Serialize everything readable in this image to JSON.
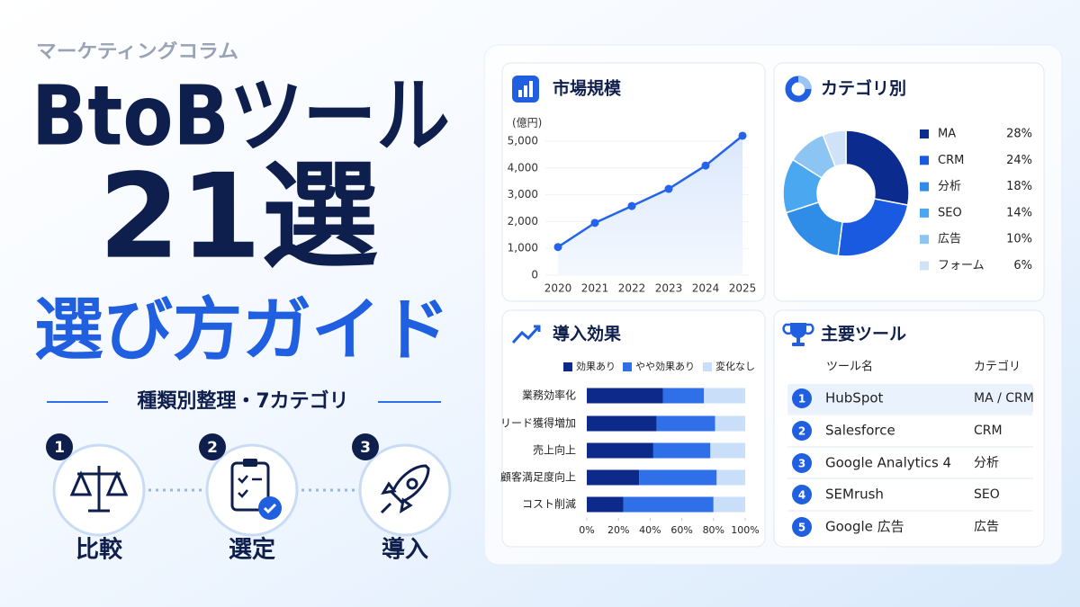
{
  "header": {
    "kicker": "マーケティングコラム",
    "title_line1": "BtoBツール",
    "title_line2": "21選",
    "subtitle": "選び方ガイド",
    "tagline": "種類別整理・7カテゴリ"
  },
  "steps": [
    {
      "number": 1,
      "label": "比較"
    },
    {
      "number": 2,
      "label": "選定"
    },
    {
      "number": 3,
      "label": "導入"
    }
  ],
  "chart_data": [
    {
      "type": "line",
      "title": "市場規模",
      "ylabel": "(億円)",
      "categories": [
        "2020",
        "2021",
        "2022",
        "2023",
        "2024",
        "2025"
      ],
      "values": [
        1050,
        1950,
        2580,
        3220,
        4090,
        5200
      ],
      "color": "#2563eb",
      "ylim": [
        0,
        5300
      ],
      "yticks": [
        0,
        {
          "value": 1000,
          "label": "1,000"
        },
        {
          "value": 2000,
          "label": "2,000"
        },
        {
          "value": 3000,
          "label": "3,000"
        },
        {
          "value": 4000,
          "label": "4,000"
        },
        {
          "value": 5000,
          "label": "5,000"
        }
      ],
      "grid": true
    },
    {
      "type": "pie",
      "title": "カテゴリ別",
      "donut": true,
      "categories": [
        "MA",
        "CRM",
        "分析",
        "SEO",
        "広告",
        "フォーム"
      ],
      "values": [
        28,
        24,
        18,
        14,
        10,
        6
      ],
      "value_labels": [
        "28%",
        "24%",
        "18%",
        "14%",
        "10%",
        "6%"
      ],
      "colors": [
        "#0b2b8f",
        "#1a5ae0",
        "#2f8de8",
        "#4aa8f0",
        "#8cc4f3",
        "#cfe2f8"
      ],
      "legend": "right"
    },
    {
      "type": "bar",
      "orientation": "horizontal",
      "stacked": true,
      "title": "導入効果",
      "legend": "top",
      "categories": [
        "業務効率化",
        "リード獲得増加",
        "売上向上",
        "顧客満足度向上",
        "コスト削減"
      ],
      "series": [
        {
          "name": "効果あり",
          "color": "#0d2a8a",
          "values": [
            48,
            44,
            42,
            33,
            23
          ]
        },
        {
          "name": "やや効果あり",
          "color": "#2f6fe8",
          "values": [
            26,
            37,
            36,
            49,
            57
          ]
        },
        {
          "name": "変化なし",
          "color": "#c9def8",
          "values": [
            26,
            19,
            22,
            18,
            20
          ]
        }
      ],
      "xlim": [
        0,
        100
      ],
      "xticks": [
        {
          "value": 0,
          "label": "0%"
        },
        {
          "value": 20,
          "label": "20%"
        },
        {
          "value": 40,
          "label": "40%"
        },
        {
          "value": 60,
          "label": "60%"
        },
        {
          "value": 80,
          "label": "80%"
        },
        {
          "value": 100,
          "label": "100%"
        }
      ]
    }
  ],
  "table": {
    "title": "主要ツール",
    "columns": [
      "ツール名",
      "カテゴリ"
    ],
    "rows": [
      {
        "no": 1,
        "name": "HubSpot",
        "category": "MA / CRM"
      },
      {
        "no": 2,
        "name": "Salesforce",
        "category": "CRM"
      },
      {
        "no": 3,
        "name": "Google Analytics 4",
        "category": "分析"
      },
      {
        "no": 4,
        "name": "SEMrush",
        "category": "SEO"
      },
      {
        "no": 5,
        "name": "Google 広告",
        "category": "広告"
      }
    ]
  }
}
